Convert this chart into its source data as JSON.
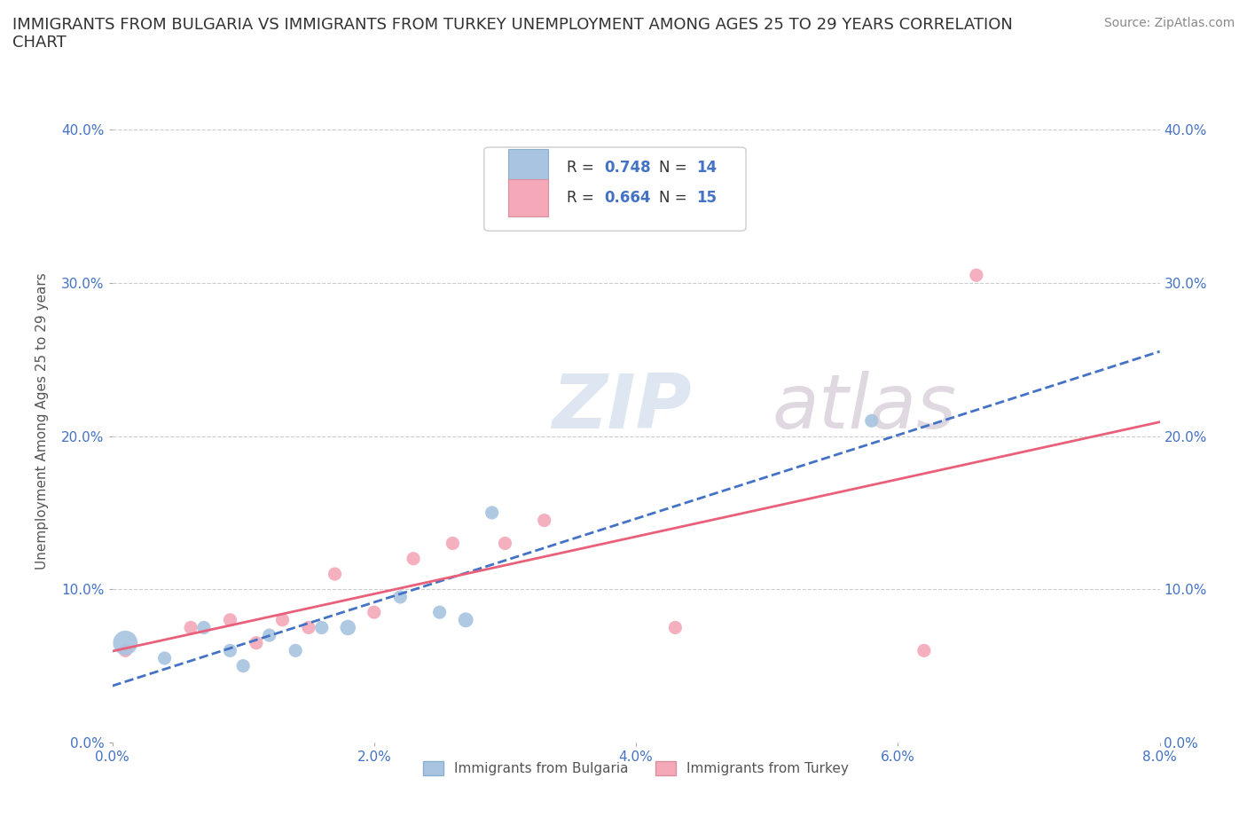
{
  "title": "IMMIGRANTS FROM BULGARIA VS IMMIGRANTS FROM TURKEY UNEMPLOYMENT AMONG AGES 25 TO 29 YEARS CORRELATION\nCHART",
  "source_text": "Source: ZipAtlas.com",
  "ylabel": "Unemployment Among Ages 25 to 29 years",
  "xlim": [
    0.0,
    0.08
  ],
  "ylim": [
    0.0,
    0.42
  ],
  "xticks": [
    0.0,
    0.02,
    0.04,
    0.06,
    0.08
  ],
  "yticks": [
    0.0,
    0.1,
    0.2,
    0.3,
    0.4
  ],
  "xtick_labels": [
    "0.0%",
    "2.0%",
    "4.0%",
    "6.0%",
    "8.0%"
  ],
  "ytick_labels": [
    "0.0%",
    "10.0%",
    "20.0%",
    "30.0%",
    "40.0%"
  ],
  "bulgaria_color": "#a8c4e0",
  "turkey_color": "#f4a8b8",
  "bulgaria_line_color": "#4472c4",
  "turkey_line_color": "#e8607a",
  "R_bulgaria": "0.748",
  "N_bulgaria": "14",
  "R_turkey": "0.664",
  "N_turkey": "15",
  "bulgaria_x": [
    0.001,
    0.004,
    0.007,
    0.009,
    0.01,
    0.012,
    0.014,
    0.016,
    0.018,
    0.022,
    0.025,
    0.027,
    0.029,
    0.058
  ],
  "bulgaria_y": [
    0.065,
    0.055,
    0.075,
    0.06,
    0.05,
    0.07,
    0.06,
    0.075,
    0.075,
    0.095,
    0.085,
    0.08,
    0.15,
    0.21
  ],
  "bulgaria_sizes": [
    400,
    120,
    120,
    120,
    120,
    120,
    120,
    120,
    160,
    120,
    120,
    150,
    120,
    120
  ],
  "turkey_x": [
    0.001,
    0.006,
    0.009,
    0.011,
    0.013,
    0.015,
    0.017,
    0.02,
    0.023,
    0.026,
    0.03,
    0.033,
    0.043,
    0.062,
    0.066
  ],
  "turkey_y": [
    0.06,
    0.075,
    0.08,
    0.065,
    0.08,
    0.075,
    0.11,
    0.085,
    0.12,
    0.13,
    0.13,
    0.145,
    0.075,
    0.06,
    0.305
  ],
  "turkey_sizes": [
    120,
    120,
    120,
    120,
    120,
    120,
    120,
    120,
    120,
    120,
    120,
    120,
    120,
    120,
    120
  ],
  "watermark_zip": "ZIP",
  "watermark_atlas": "atlas",
  "legend_label1": "Immigrants from Bulgaria",
  "legend_label2": "Immigrants from Turkey",
  "grid_color": "#cccccc",
  "background_color": "#ffffff",
  "title_fontsize": 13,
  "axis_label_fontsize": 11,
  "tick_fontsize": 11,
  "source_fontsize": 10
}
